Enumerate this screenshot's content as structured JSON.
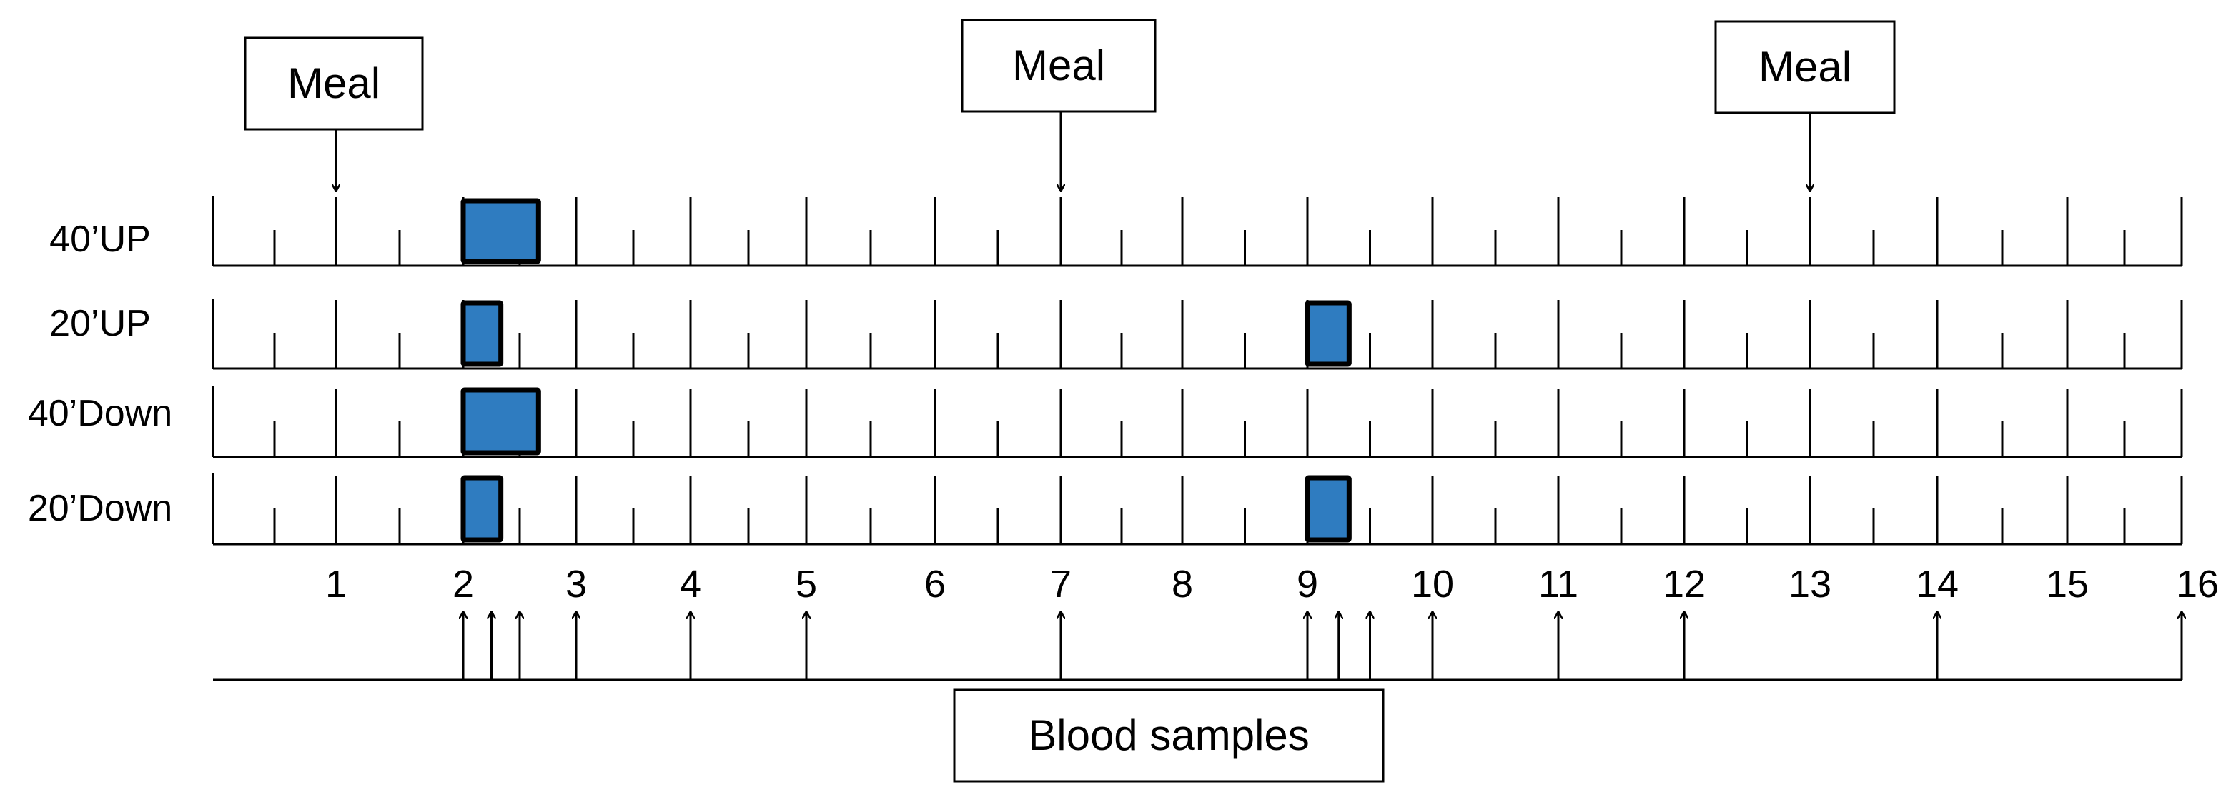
{
  "meals": {
    "label": "Meal",
    "times": [
      1,
      7,
      13
    ]
  },
  "conditions": [
    {
      "label": "40’UP",
      "bouts": [
        {
          "start": 2,
          "duration_min": 40
        }
      ]
    },
    {
      "label": "20’UP",
      "bouts": [
        {
          "start": 2,
          "duration_min": 20
        },
        {
          "start": 9,
          "duration_min": 20
        }
      ]
    },
    {
      "label": "40’Down",
      "bouts": [
        {
          "start": 2,
          "duration_min": 40
        }
      ]
    },
    {
      "label": "20’Down",
      "bouts": [
        {
          "start": 2,
          "duration_min": 20
        },
        {
          "start": 9,
          "duration_min": 20
        }
      ]
    }
  ],
  "hour_labels": [
    "1",
    "2",
    "3",
    "4",
    "5",
    "6",
    "7",
    "8",
    "9",
    "10",
    "11",
    "12",
    "13",
    "14",
    "15",
    "16"
  ],
  "blood_samples": {
    "label": "Blood samples",
    "times": [
      2,
      2.25,
      2.5,
      3,
      4,
      5,
      7,
      9,
      9.25,
      9.5,
      10,
      11,
      12,
      14,
      16
    ]
  },
  "colors": {
    "bout_fill": "#2f7cc0",
    "line": "#000000"
  }
}
